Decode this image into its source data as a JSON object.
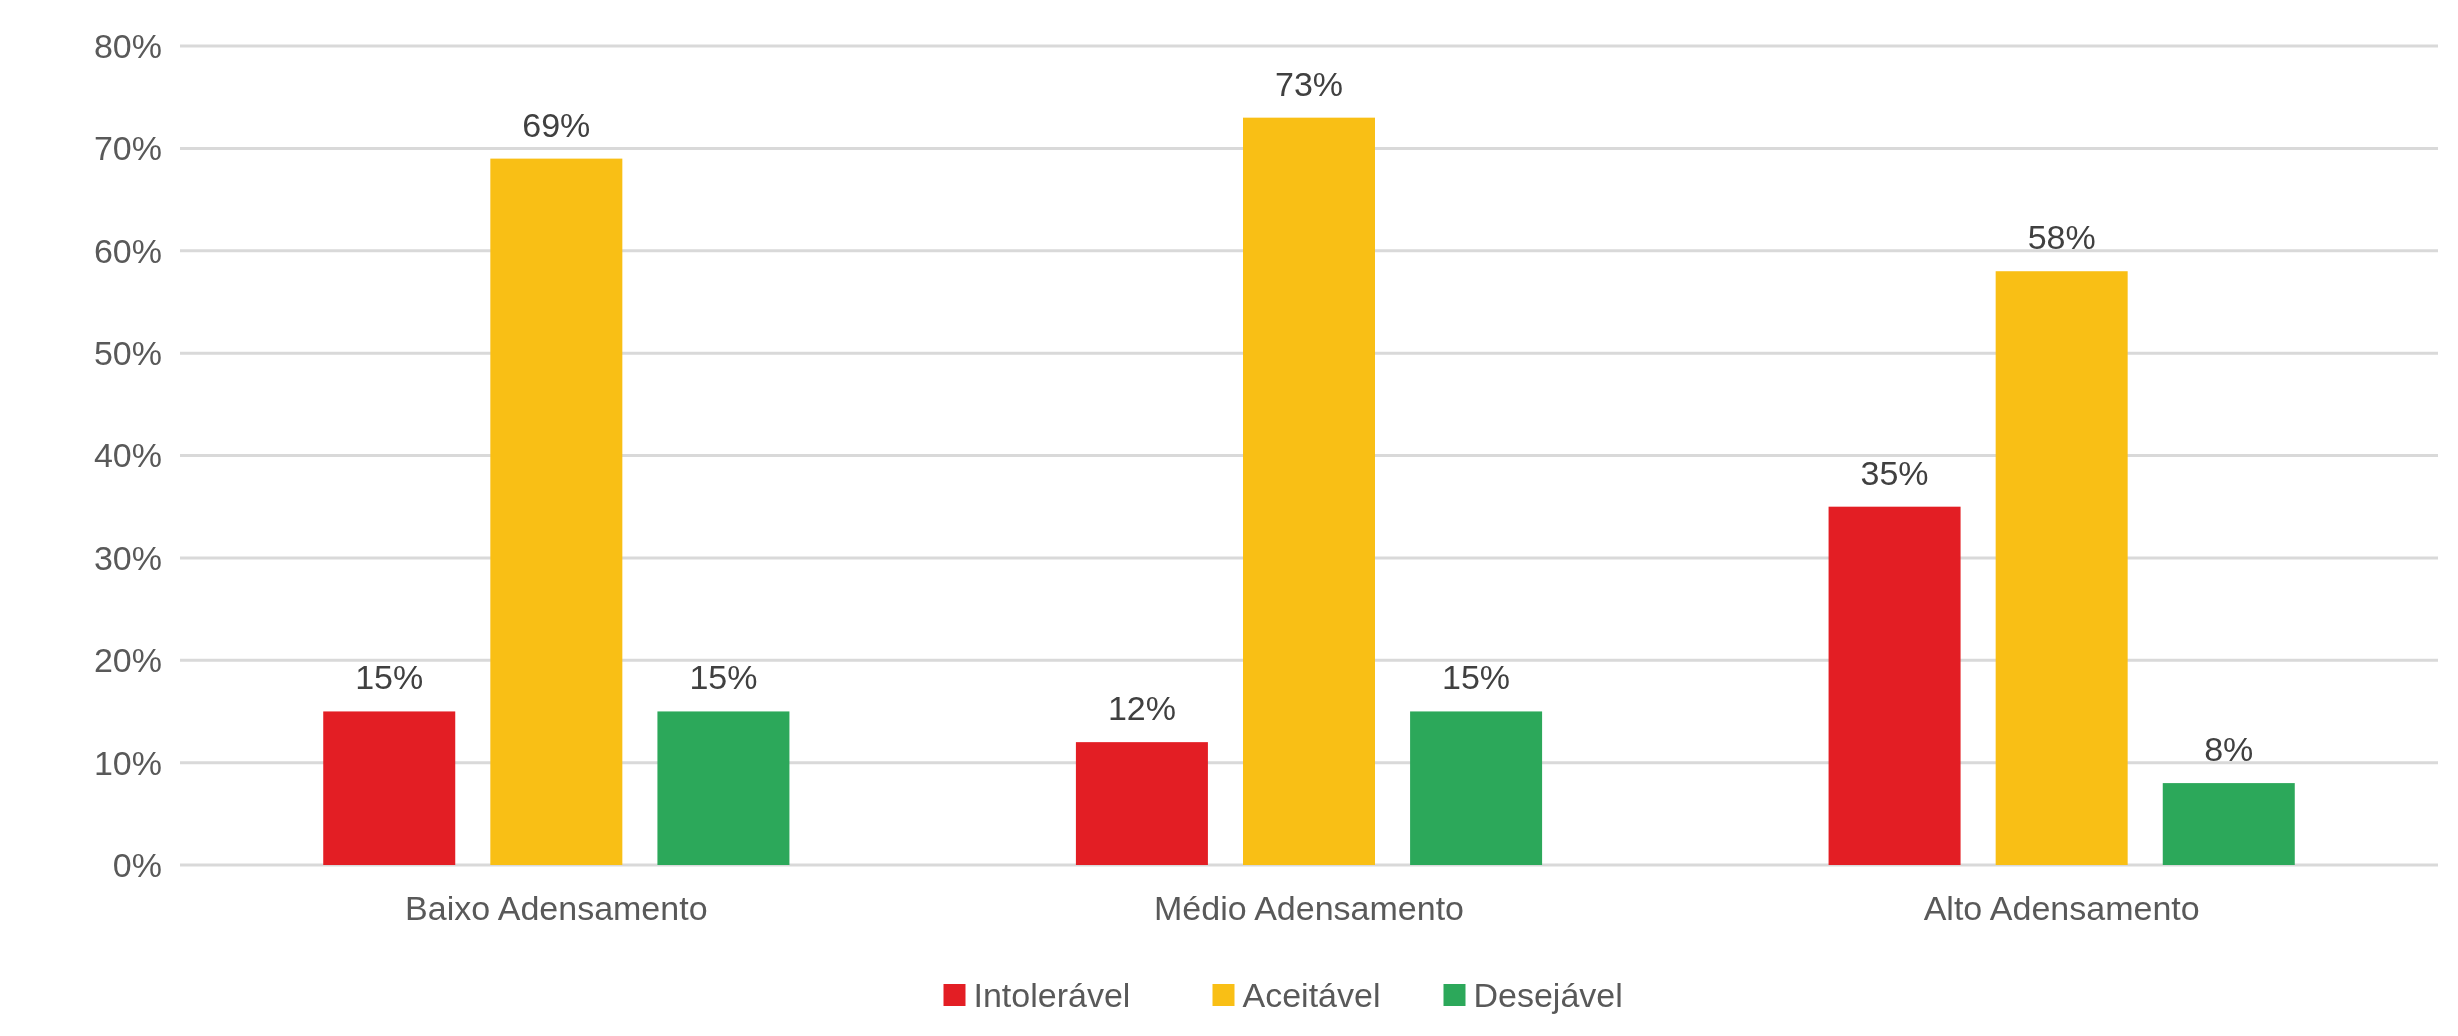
{
  "chart_data": {
    "type": "bar",
    "categories": [
      "Baixo Adensamento",
      "Médio Adensamento",
      "Alto Adensamento"
    ],
    "series": [
      {
        "name": "Intolerável",
        "color": "#e31e24",
        "values": [
          15,
          12,
          35
        ],
        "value_labels": [
          "15%",
          "12%",
          "35%"
        ]
      },
      {
        "name": "Aceitável",
        "color": "#f9bf15",
        "values": [
          69,
          73,
          58
        ],
        "value_labels": [
          "69%",
          "73%",
          "58%"
        ]
      },
      {
        "name": "Desejável",
        "color": "#2ca85a",
        "values": [
          15,
          15,
          8
        ],
        "value_labels": [
          "15%",
          "15%",
          "8%"
        ]
      }
    ],
    "ylim": [
      0,
      80
    ],
    "yticks": [
      {
        "value": 0,
        "label": "0%"
      },
      {
        "value": 10,
        "label": "10%"
      },
      {
        "value": 20,
        "label": "20%"
      },
      {
        "value": 30,
        "label": "30%"
      },
      {
        "value": 40,
        "label": "40%"
      },
      {
        "value": 50,
        "label": "50%"
      },
      {
        "value": 60,
        "label": "60%"
      },
      {
        "value": 70,
        "label": "70%"
      },
      {
        "value": 80,
        "label": "80%"
      }
    ],
    "grid": "y",
    "legend": "bottom"
  }
}
